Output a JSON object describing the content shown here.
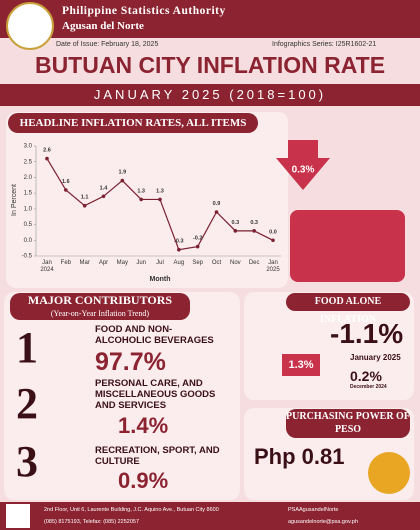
{
  "header": {
    "agency": "Philippine Statistics Authority",
    "office": "Agusan del Norte",
    "date_of_issue": "Date of Issue: February 18, 2025",
    "series": "Infographics Series: I25R1602-21",
    "title": "BUTUAN CITY INFLATION RATE",
    "subtitle": "JANUARY 2025 (2018=100)"
  },
  "chart_data": {
    "type": "line",
    "title": "HEADLINE INFLATION RATES, ALL ITEMS",
    "ylabel": "In Percent",
    "xlabel": "Month",
    "categories": [
      "Jan 2024",
      "Feb",
      "Mar",
      "Apr",
      "May",
      "Jun",
      "Jul",
      "Aug",
      "Sep",
      "Oct",
      "Nov",
      "Dec",
      "Jan 2025"
    ],
    "values": [
      2.6,
      1.6,
      1.1,
      1.4,
      1.9,
      1.3,
      1.3,
      -0.3,
      -0.2,
      0.9,
      0.3,
      0.3,
      0.0
    ],
    "value_labels": [
      "2.6",
      "1.6",
      "1.1",
      "1.4",
      "1.9",
      "1.3",
      "1.3",
      "-0.3",
      "-0.2",
      "0.9",
      "0.3",
      "0.3",
      "0.0"
    ],
    "color": "#7a2030",
    "grid": false,
    "ylim": [
      -0.5,
      3.0
    ],
    "yticks": [
      {
        "value": -0.5,
        "label": "-0.5"
      },
      {
        "value": 0,
        "label": "0.0"
      },
      {
        "value": 0.5,
        "label": "0.5"
      },
      {
        "value": 1,
        "label": "1.0"
      },
      {
        "value": 1.5,
        "label": "1.5"
      },
      {
        "value": 2,
        "label": "2.0"
      },
      {
        "value": 2.5,
        "label": "2.5"
      },
      {
        "value": 3,
        "label": "3.0"
      }
    ],
    "highlight": "0.3%"
  },
  "contributors": {
    "title": "MAJOR CONTRIBUTORS",
    "subtitle": "(Year-on-Year Inflation Trend)",
    "items": [
      {
        "rank": "1",
        "label": "FOOD AND NON-ALCOHOLIC BEVERAGES",
        "share": "97.7%"
      },
      {
        "rank": "2",
        "label": "PERSONAL CARE, AND MISCELLANEOUS GOODS AND SERVICES",
        "share": "1.4%"
      },
      {
        "rank": "3",
        "label": "RECREATION, SPORT, AND CULTURE",
        "share": "0.9%"
      }
    ]
  },
  "food_inflation": {
    "title": "FOOD ALONE INFLATION",
    "badge": "1.3%",
    "current": "-1.1%",
    "current_period": "January 2025",
    "previous": "0.2%",
    "previous_period": "December 2024"
  },
  "purchasing_power": {
    "title": "PURCHASING POWER OF PESO",
    "value": "Php 0.81"
  },
  "footer": {
    "address": "2nd Floor, Unit 6, Laurente Building, J.C. Aquino Ave., Butuan City 8600",
    "phone": "(085) 8175193, Telefax: (085) 2252057",
    "facebook": "PSAAgusandelNorte",
    "email": "agusandelnorte@psa.gov.ph"
  }
}
